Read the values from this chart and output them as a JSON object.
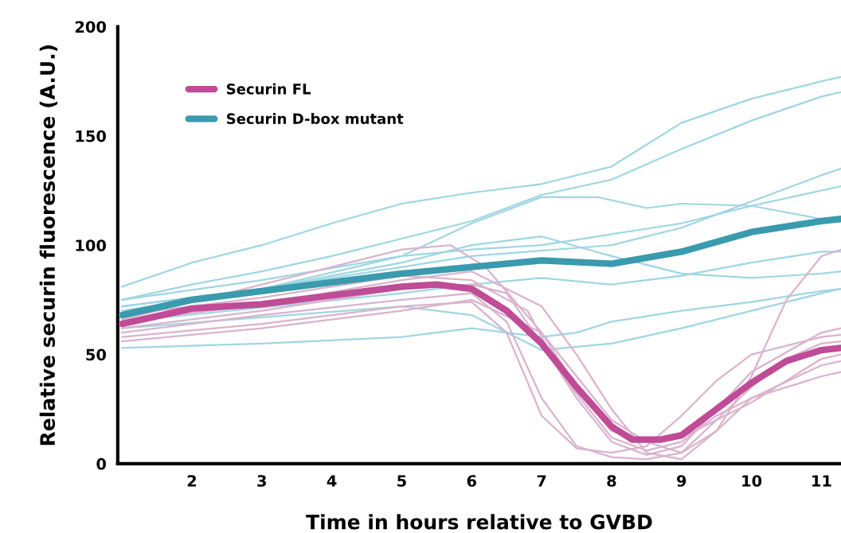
{
  "chart_data": {
    "type": "line",
    "xlabel": "Time in hours relative to GVBD",
    "ylabel": "Relative securin fluorescence (A.U.)",
    "xlim": [
      0.94,
      11.28
    ],
    "ylim": [
      0,
      200
    ],
    "xticks": [
      2,
      3,
      4,
      5,
      6,
      7,
      8,
      9,
      10,
      11
    ],
    "yticks": [
      0,
      50,
      100,
      150,
      200
    ],
    "grid": false,
    "legend": "top left",
    "marker": "none",
    "line_style": "solid",
    "series": [
      {
        "color": "#9fd6e4",
        "x": [
          1,
          2,
          3,
          4,
          5,
          6,
          7,
          8,
          9,
          10,
          11,
          11.28
        ],
        "values": [
          81,
          92,
          100,
          110,
          119,
          124,
          128,
          136,
          156,
          167,
          175,
          177
        ]
      },
      {
        "color": "#9fd6e4",
        "x": [
          1,
          2,
          3,
          4,
          5,
          6,
          7,
          8,
          9,
          10,
          11,
          11.28
        ],
        "values": [
          75,
          82,
          88,
          95,
          103,
          111,
          123,
          130,
          144,
          157,
          168,
          170
        ]
      },
      {
        "color": "#9fd6e4",
        "x": [
          1,
          3,
          5,
          6,
          7,
          7.8,
          8.5,
          9,
          10,
          11,
          11.28
        ],
        "values": [
          72,
          80,
          95,
          110,
          122,
          122,
          117,
          119,
          118,
          112,
          111
        ]
      },
      {
        "color": "#9fd6e4",
        "x": [
          1,
          4,
          6,
          8,
          9,
          10,
          11,
          11.28
        ],
        "values": [
          70,
          85,
          95,
          100,
          108,
          120,
          132,
          135
        ]
      },
      {
        "color": "#9fd6e4",
        "x": [
          1,
          3,
          5,
          6,
          7,
          7.5,
          8,
          9,
          10,
          11,
          11.28
        ],
        "values": [
          53,
          55,
          58,
          62,
          58,
          60,
          65,
          70,
          74,
          79,
          80
        ]
      },
      {
        "color": "#9fd6e4",
        "x": [
          1,
          3,
          5,
          6,
          7,
          8,
          9,
          10,
          11,
          11.28
        ],
        "values": [
          62,
          67,
          72,
          68,
          52,
          55,
          62,
          70,
          78,
          80
        ]
      },
      {
        "color": "#9fd6e4",
        "x": [
          1,
          3,
          5,
          6,
          7,
          8,
          9,
          10,
          11,
          11.28
        ],
        "values": [
          72,
          80,
          92,
          100,
          104,
          95,
          87,
          85,
          87,
          88
        ]
      },
      {
        "color": "#9fd6e4",
        "x": [
          1,
          3,
          5,
          6,
          7,
          8,
          9,
          10,
          11,
          11.28
        ],
        "values": [
          75,
          84,
          95,
          98,
          100,
          105,
          110,
          118,
          125,
          127
        ]
      },
      {
        "color": "#9fd6e4",
        "x": [
          1,
          5,
          6,
          7,
          8,
          9,
          10,
          11,
          11.28
        ],
        "values": [
          65,
          78,
          82,
          85,
          82,
          86,
          92,
          97,
          97
        ]
      },
      {
        "color": "#d9b3cc",
        "x": [
          1,
          3,
          5,
          6,
          6.5,
          7,
          7.5,
          8,
          8.5,
          9,
          9.5,
          10,
          10.5,
          11,
          11.28
        ],
        "values": [
          60,
          68,
          75,
          78,
          65,
          30,
          8,
          3,
          2,
          5,
          20,
          35,
          48,
          55,
          56
        ]
      },
      {
        "color": "#d9b3cc",
        "x": [
          1,
          3,
          5,
          6,
          6.5,
          7,
          7.5,
          8,
          8.5,
          9,
          9.5,
          10,
          11,
          11.28
        ],
        "values": [
          62,
          70,
          80,
          82,
          78,
          55,
          30,
          10,
          4,
          8,
          25,
          42,
          60,
          62
        ]
      },
      {
        "color": "#d9b3cc",
        "x": [
          1,
          3,
          5,
          6,
          7,
          7.5,
          8,
          8.5,
          9,
          9.5,
          10,
          10.5,
          11,
          11.28
        ],
        "values": [
          65,
          73,
          84,
          88,
          72,
          50,
          25,
          5,
          2,
          15,
          40,
          75,
          95,
          98
        ]
      },
      {
        "color": "#d9b3cc",
        "x": [
          1,
          3,
          5,
          6,
          6.5,
          7,
          7.5,
          8,
          8.5,
          9,
          9.5,
          10,
          11,
          11.28
        ],
        "values": [
          58,
          64,
          72,
          74,
          60,
          22,
          7,
          5,
          8,
          22,
          38,
          50,
          58,
          59
        ]
      },
      {
        "color": "#d9b3cc",
        "x": [
          1,
          3,
          5,
          6,
          6.8,
          7.3,
          8,
          8.5,
          9,
          9.5,
          10,
          11,
          11.28
        ],
        "values": [
          68,
          76,
          86,
          84,
          70,
          40,
          12,
          6,
          10,
          22,
          30,
          40,
          42
        ]
      },
      {
        "color": "#d9b3cc",
        "x": [
          1,
          5,
          5.7,
          6.2,
          7,
          7.5,
          8,
          9,
          9.5,
          10,
          11,
          11.28
        ],
        "values": [
          66,
          98,
          100,
          90,
          60,
          35,
          15,
          5,
          15,
          30,
          45,
          47
        ]
      },
      {
        "color": "#d9b3cc",
        "x": [
          1,
          3,
          5,
          6,
          7,
          7.5,
          8,
          8.5,
          9,
          10,
          11,
          11.28
        ],
        "values": [
          56,
          62,
          70,
          75,
          60,
          40,
          20,
          10,
          12,
          28,
          48,
          50
        ]
      },
      {
        "name": "Securin FL",
        "color": "#c04b97",
        "x": [
          1,
          2,
          3,
          4,
          5,
          5.5,
          6,
          6.5,
          7,
          7.5,
          8,
          8.3,
          8.7,
          9,
          9.5,
          10,
          10.5,
          11,
          11.28
        ],
        "values": [
          64,
          71,
          73,
          77,
          81,
          82,
          80,
          70,
          55,
          35,
          17,
          11,
          11,
          13,
          25,
          37,
          47,
          52,
          53
        ]
      },
      {
        "name": "Securin D-box mutant",
        "color": "#3a9aae",
        "x": [
          1,
          2,
          3,
          4,
          5,
          6,
          7,
          8,
          9,
          10,
          11,
          11.28
        ],
        "values": [
          68,
          75,
          79,
          83,
          87,
          90,
          93,
          91.5,
          97,
          106,
          111,
          112
        ]
      }
    ]
  }
}
